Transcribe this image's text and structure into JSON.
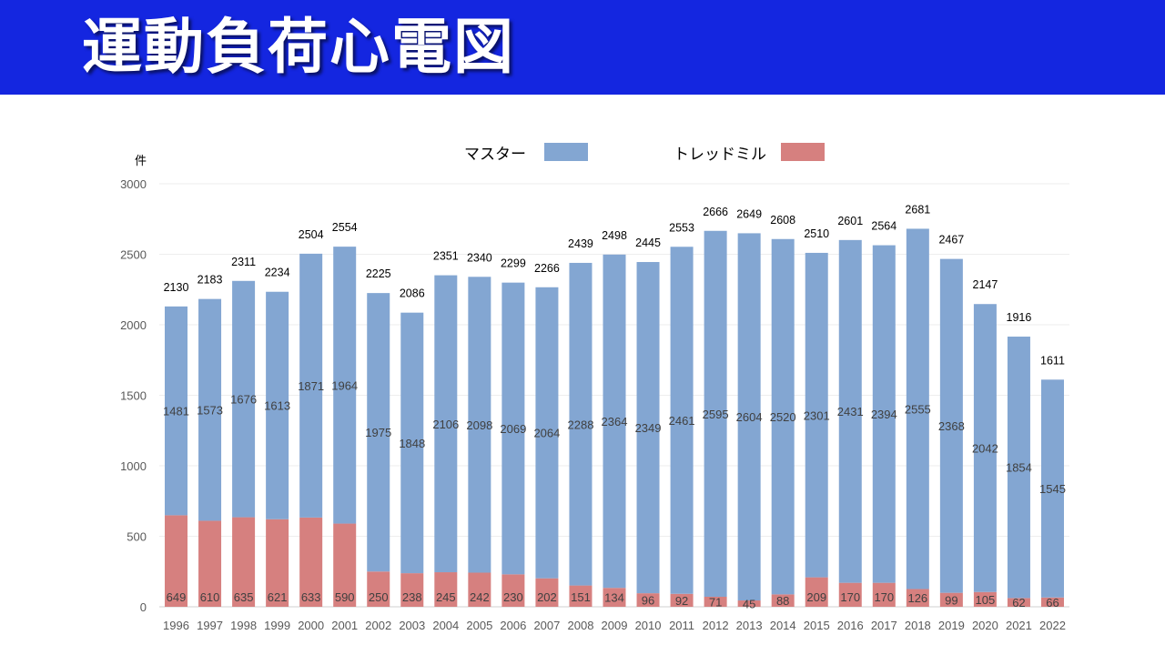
{
  "header": {
    "title": "運動負荷心電図"
  },
  "chart_data": {
    "type": "bar",
    "stacked": true,
    "title": "",
    "ylabel": "件",
    "xlabel": "",
    "ylim": [
      0,
      3000
    ],
    "yticks": [
      0,
      500,
      1000,
      1500,
      2000,
      2500,
      3000
    ],
    "grid": true,
    "legend_position": "top",
    "categories": [
      "1996",
      "1997",
      "1998",
      "1999",
      "2000",
      "2001",
      "2002",
      "2003",
      "2004",
      "2005",
      "2006",
      "2007",
      "2008",
      "2009",
      "2010",
      "2011",
      "2012",
      "2013",
      "2014",
      "2015",
      "2016",
      "2017",
      "2018",
      "2019",
      "2020",
      "2021",
      "2022"
    ],
    "series": [
      {
        "name": "トレッドミル",
        "color": "#d6807f",
        "values": [
          649,
          610,
          635,
          621,
          633,
          590,
          250,
          238,
          245,
          242,
          230,
          202,
          151,
          134,
          96,
          92,
          71,
          45,
          88,
          209,
          170,
          170,
          126,
          99,
          105,
          62,
          66
        ]
      },
      {
        "name": "マスター",
        "color": "#83a6d2",
        "values": [
          1481,
          1573,
          1676,
          1613,
          1871,
          1964,
          1975,
          1848,
          2106,
          2098,
          2069,
          2064,
          2288,
          2364,
          2349,
          2461,
          2595,
          2604,
          2520,
          2301,
          2431,
          2394,
          2555,
          2368,
          2042,
          1854,
          1545
        ]
      }
    ],
    "totals": [
      2130,
      2183,
      2311,
      2234,
      2504,
      2554,
      2225,
      2086,
      2351,
      2340,
      2299,
      2266,
      2439,
      2498,
      2445,
      2553,
      2666,
      2649,
      2608,
      2510,
      2601,
      2564,
      2681,
      2467,
      2147,
      1916,
      1611
    ]
  }
}
